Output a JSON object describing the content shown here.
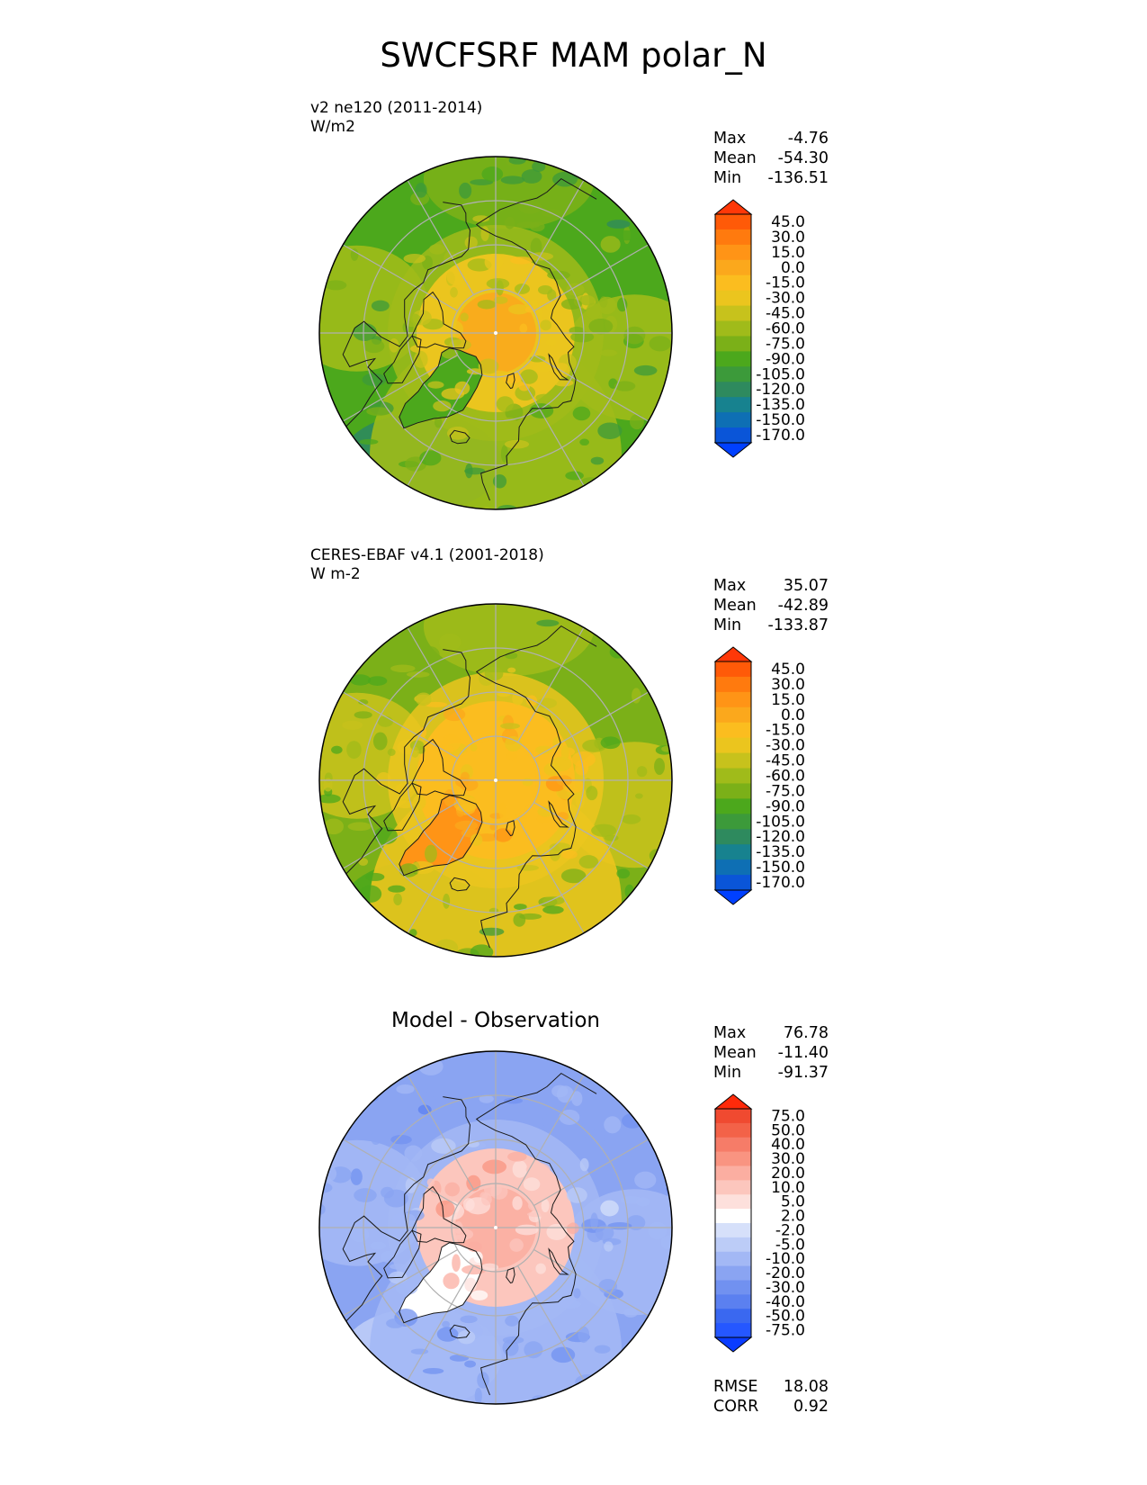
{
  "title": "SWCFSRF MAM polar_N",
  "colors": {
    "seq": [
      "#0040ff",
      "#0a55d8",
      "#0e6fb4",
      "#17828f",
      "#2e8a5e",
      "#3c9a3a",
      "#4ca81c",
      "#7bb018",
      "#a0bb1a",
      "#c7c21c",
      "#ebc51e",
      "#fbbd1f",
      "#fba81c",
      "#ff9416",
      "#ff7a0e",
      "#ff5a08",
      "#ff3808"
    ],
    "div": [
      "#0a3cff",
      "#2557ff",
      "#3a68f0",
      "#5b80f0",
      "#7191f0",
      "#8aa4f2",
      "#a3b8f5",
      "#bcccf7",
      "#d6e0fa",
      "#ffffff",
      "#fde0dc",
      "#fcc6bd",
      "#fbaea1",
      "#f99481",
      "#f67c68",
      "#f36248",
      "#f04a30",
      "#ff2a0a"
    ],
    "coast": "#1a1a1a",
    "grid": "#b0b0b0"
  },
  "panels": [
    {
      "kind": "test",
      "name": "v2 ne120 (2011-2014)",
      "units": "W/m2",
      "stats": {
        "max_label": "Max",
        "max": "-4.76",
        "mean_label": "Mean",
        "mean": "-54.30",
        "min_label": "Min",
        "min": "-136.51"
      },
      "colorbar": {
        "palette": "seq",
        "labels": [
          "45.0",
          "30.0",
          "15.0",
          "0.0",
          "-15.0",
          "-30.0",
          "-45.0",
          "-60.0",
          "-75.0",
          "-90.0",
          "-105.0",
          "-120.0",
          "-135.0",
          "-150.0",
          "-170.0"
        ]
      },
      "field": {
        "pole": 12,
        "inner": 9.5,
        "mid": 8,
        "outer": 6,
        "atl": 3.5,
        "pac": 6.5,
        "green": 6,
        "eur": 7.5
      }
    },
    {
      "kind": "obs",
      "name": "CERES-EBAF v4.1 (2001-2018)",
      "units": "W m-2",
      "stats": {
        "max_label": "Max",
        "max": "35.07",
        "mean_label": "Mean",
        "mean": "-42.89",
        "min_label": "Min",
        "min": "-133.87"
      },
      "colorbar": {
        "palette": "seq",
        "labels": [
          "45.0",
          "30.0",
          "15.0",
          "0.0",
          "-15.0",
          "-30.0",
          "-45.0",
          "-60.0",
          "-75.0",
          "-90.0",
          "-105.0",
          "-120.0",
          "-135.0",
          "-150.0",
          "-170.0"
        ]
      },
      "field": {
        "pole": 11,
        "inner": 11,
        "mid": 9.5,
        "outer": 7,
        "atl": 6,
        "pac": 7.5,
        "green": 12.5,
        "eur": 9
      }
    },
    {
      "kind": "diff",
      "name": "Model - Observation",
      "stats": {
        "max_label": "Max",
        "max": "76.78",
        "mean_label": "Mean",
        "mean": "-11.40",
        "min_label": "Min",
        "min": "-91.37"
      },
      "colorbar": {
        "palette": "div",
        "labels": [
          "75.0",
          "50.0",
          "40.0",
          "30.0",
          "20.0",
          "10.0",
          "5.0",
          "2.0",
          "-2.0",
          "-5.0",
          "-10.0",
          "-20.0",
          "-30.0",
          "-40.0",
          "-50.0",
          "-75.0"
        ]
      },
      "field": {
        "pole": 11.5,
        "inner": 11,
        "mid": 6,
        "outer": 5,
        "atl": 7,
        "pac": 5,
        "green": 8.5,
        "eur": 6
      },
      "footer": {
        "rmse_label": "RMSE",
        "rmse": "18.08",
        "corr_label": "CORR",
        "corr": "0.92"
      }
    }
  ]
}
